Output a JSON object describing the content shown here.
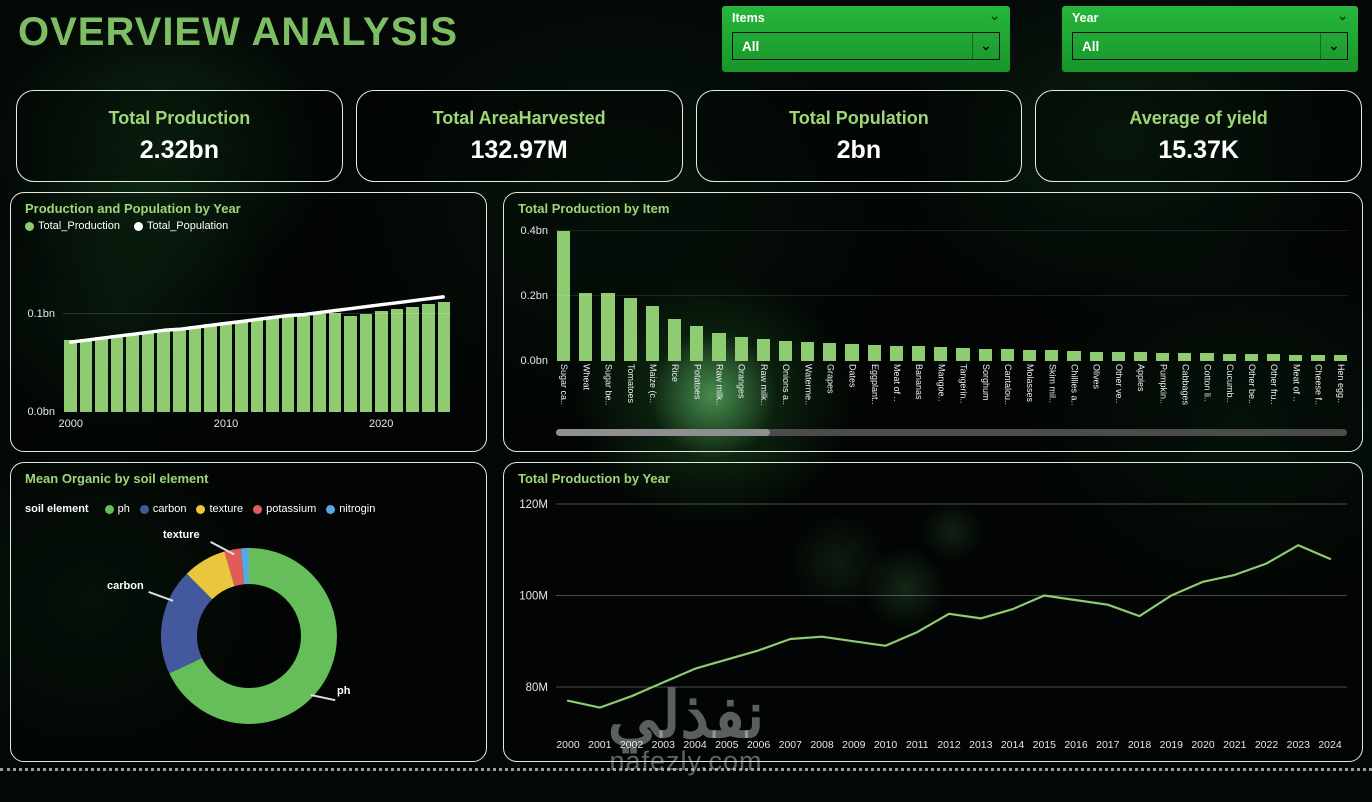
{
  "header": {
    "title": "OVERVIEW ANALYSIS",
    "filters": [
      {
        "label": "Items",
        "value": "All"
      },
      {
        "label": "Year",
        "value": "All"
      }
    ]
  },
  "kpis": [
    {
      "label": "Total Production",
      "value": "2.32bn"
    },
    {
      "label": "Total AreaHarvested",
      "value": "132.97M"
    },
    {
      "label": "Total Population",
      "value": "2bn"
    },
    {
      "label": "Average of yield",
      "value": "15.37K"
    }
  ],
  "watermark": {
    "arabic": "نفذلي",
    "site": "nafezly.com"
  },
  "colors": {
    "background": "#030705",
    "panel_border": "#E2EAE2",
    "title_green": "#7EBE63",
    "kpi_label_green": "#9FD678",
    "filter_green": "#1CA733",
    "bar_green": "#8FCB70",
    "population_line": "#FFFFFF"
  },
  "chart_data": [
    {
      "id": "production-population-by-year",
      "type": "bar",
      "title": "Production and Population by Year",
      "x": [
        "2000",
        "2001",
        "2002",
        "2003",
        "2004",
        "2005",
        "2006",
        "2007",
        "2008",
        "2009",
        "2010",
        "2011",
        "2012",
        "2013",
        "2014",
        "2015",
        "2016",
        "2017",
        "2018",
        "2019",
        "2020",
        "2021",
        "2022",
        "2023",
        "2024"
      ],
      "series": [
        {
          "name": "Total_Production",
          "kind": "bar",
          "color": "#8FCB70",
          "values": [
            0.073,
            0.074,
            0.076,
            0.078,
            0.079,
            0.081,
            0.083,
            0.085,
            0.087,
            0.089,
            0.091,
            0.092,
            0.094,
            0.096,
            0.097,
            0.098,
            0.1,
            0.101,
            0.098,
            0.1,
            0.103,
            0.105,
            0.107,
            0.11,
            0.112
          ]
        },
        {
          "name": "Total_Population",
          "kind": "line",
          "color": "#FFFFFF",
          "values": [
            0.071,
            0.073,
            0.075,
            0.077,
            0.079,
            0.081,
            0.083,
            0.084,
            0.086,
            0.088,
            0.09,
            0.092,
            0.094,
            0.096,
            0.098,
            0.099,
            0.101,
            0.103,
            0.105,
            0.107,
            0.109,
            0.111,
            0.113,
            0.115,
            0.117
          ]
        }
      ],
      "ylim": [
        0,
        0.125
      ],
      "yticks": [
        {
          "v": 0,
          "label": "0.0bn"
        },
        {
          "v": 0.1,
          "label": "0.1bn"
        }
      ],
      "xticks": [
        {
          "index": 0,
          "label": "2000"
        },
        {
          "index": 10,
          "label": "2010"
        },
        {
          "index": 20,
          "label": "2020"
        }
      ],
      "legend_position": "top-left"
    },
    {
      "id": "total-production-by-item",
      "type": "bar",
      "title": "Total  Production by Item",
      "bar_color": "#8FCB70",
      "categories": [
        "Sugar ca..",
        "Wheat",
        "Sugar be..",
        "Tomatoes",
        "Maize (c..",
        "Rice",
        "Potatoes",
        "Raw milk..",
        "Oranges",
        "Raw milk..",
        "Onions a..",
        "Waterme..",
        "Grapes",
        "Dates",
        "Eggplant..",
        "Meat of ..",
        "Bananas",
        "Mangoe..",
        "Tangerin..",
        "Sorghum",
        "Cantalou..",
        "Molasses",
        "Skim mil..",
        "Chillies a..",
        "Olives",
        "Other ve..",
        "Apples",
        "Pumpkin..",
        "Cabbages",
        "Cotton li..",
        "Cucumb..",
        "Other be..",
        "Other fru..",
        "Meat of ..",
        "Cheese f..",
        "Hen egg.."
      ],
      "values": [
        0.4,
        0.21,
        0.21,
        0.195,
        0.17,
        0.13,
        0.108,
        0.086,
        0.074,
        0.068,
        0.062,
        0.058,
        0.055,
        0.052,
        0.049,
        0.046,
        0.045,
        0.043,
        0.04,
        0.038,
        0.037,
        0.034,
        0.034,
        0.031,
        0.029,
        0.028,
        0.028,
        0.026,
        0.025,
        0.025,
        0.023,
        0.022,
        0.022,
        0.02,
        0.019,
        0.019
      ],
      "ylim": [
        0,
        0.45
      ],
      "yticks": [
        {
          "v": 0,
          "label": "0.0bn"
        },
        {
          "v": 0.2,
          "label": "0.2bn"
        },
        {
          "v": 0.4,
          "label": "0.4bn"
        }
      ],
      "scrollbar": {
        "thumb_fraction": 0.27
      }
    },
    {
      "id": "mean-organic-by-soil-element",
      "type": "pie",
      "title": "Mean Organic by soil element",
      "legend_title": "soil element",
      "slices": [
        {
          "name": "ph",
          "value": 68,
          "color": "#66BE5B"
        },
        {
          "name": "carbon",
          "value": 19.5,
          "color": "#44589E"
        },
        {
          "name": "texture",
          "value": 8,
          "color": "#EAC63E"
        },
        {
          "name": "potassium",
          "value": 3,
          "color": "#E25B5B"
        },
        {
          "name": "nitrogin",
          "value": 1.5,
          "color": "#58A9E0"
        }
      ],
      "callouts": [
        "texture",
        "carbon",
        "ph"
      ]
    },
    {
      "id": "total-production-by-year",
      "type": "line",
      "title": "Total Production by Year",
      "line_color": "#8FCB70",
      "x": [
        "2000",
        "2001",
        "2002",
        "2003",
        "2004",
        "2005",
        "2006",
        "2007",
        "2008",
        "2009",
        "2010",
        "2011",
        "2012",
        "2013",
        "2014",
        "2015",
        "2016",
        "2017",
        "2018",
        "2019",
        "2020",
        "2021",
        "2022",
        "2023",
        "2024"
      ],
      "values": [
        77,
        75.5,
        78,
        81,
        84,
        86,
        88,
        90.5,
        91,
        90,
        89,
        92,
        96,
        95,
        97,
        100,
        99,
        98,
        95.5,
        100,
        103,
        104.5,
        107,
        111,
        108
      ],
      "ylim": [
        72,
        122
      ],
      "yticks": [
        {
          "v": 80,
          "label": "80M"
        },
        {
          "v": 100,
          "label": "100M"
        },
        {
          "v": 120,
          "label": "120M"
        }
      ],
      "grid": true,
      "legend_position": "none"
    }
  ]
}
